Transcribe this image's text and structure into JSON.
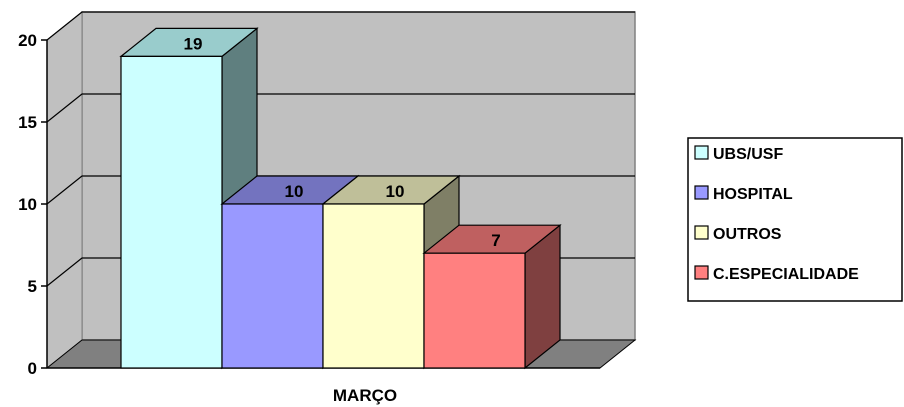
{
  "chart_data": {
    "type": "bar",
    "style": "3d-clustered-column",
    "title": "",
    "xlabel": "",
    "ylabel": "",
    "categories": [
      "MARÇO"
    ],
    "series": [
      {
        "name": "UBS/USF",
        "values": [
          19
        ],
        "color": "#ccffff",
        "side_color": "#5f7f7f",
        "top_color": "#99cccc"
      },
      {
        "name": "HOSPITAL",
        "values": [
          10
        ],
        "color": "#9999ff",
        "side_color": "#4c4c7f",
        "top_color": "#7373bf"
      },
      {
        "name": "OUTROS",
        "values": [
          10
        ],
        "color": "#ffffcc",
        "side_color": "#7f7f66",
        "top_color": "#bfbf99"
      },
      {
        "name": "C.ESPECIALIDADE",
        "values": [
          7
        ],
        "color": "#ff8080",
        "side_color": "#7f4040",
        "top_color": "#bf6060"
      }
    ],
    "yticks": [
      0,
      5,
      10,
      15,
      20
    ],
    "ylim": [
      0,
      20
    ],
    "grid": true,
    "legend": "right",
    "colors": {
      "wall": "#c0c0c0",
      "floor": "#808080",
      "gridline": "#000000"
    }
  }
}
